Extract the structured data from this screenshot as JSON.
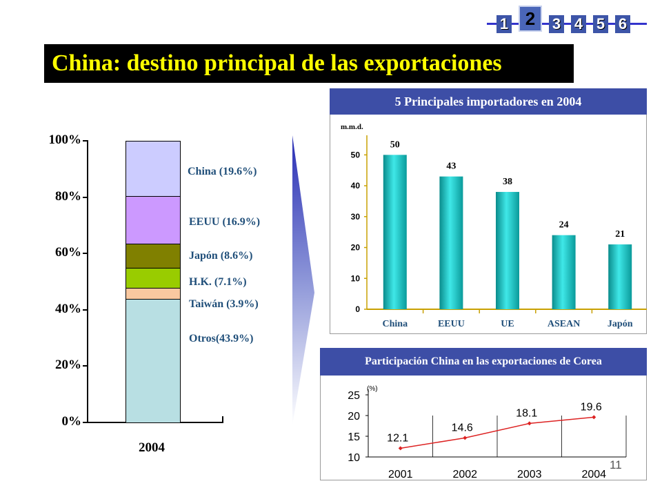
{
  "nav": {
    "pages": [
      "1",
      "2",
      "3",
      "4",
      "5",
      "6"
    ],
    "active": "2"
  },
  "title": "China: destino principal de las exportaciones",
  "page_number": "11",
  "colors": {
    "title_bg": "#000000",
    "title_text": "#ffff00",
    "panel_header": "#3d4ea6",
    "bar": "#19c8c8",
    "line": "#dd2222"
  },
  "chart_data": [
    {
      "type": "bar",
      "stacked": true,
      "categories": [
        "2004"
      ],
      "y_ticks": [
        "0%",
        "20%",
        "40%",
        "60%",
        "80%",
        "100%"
      ],
      "ylim": [
        0,
        100
      ],
      "series": [
        {
          "name": "Otros(43.9%)",
          "value": 43.9,
          "color": "#b8dfe3"
        },
        {
          "name": "Taiwán (3.9%)",
          "value": 3.9,
          "color": "#f9c8a0"
        },
        {
          "name": "H.K. (7.1%)",
          "value": 7.1,
          "color": "#99cc00"
        },
        {
          "name": "Japón (8.6%)",
          "value": 8.6,
          "color": "#808000"
        },
        {
          "name": "EEUU (16.9%)",
          "value": 16.9,
          "color": "#cc99ff"
        },
        {
          "name": "China (19.6%)",
          "value": 19.6,
          "color": "#ccccff"
        }
      ]
    },
    {
      "type": "bar",
      "title": "5 Principales importadores en 2004",
      "unit": "m.m.d.",
      "categories": [
        "China",
        "EEUU",
        "UE",
        "ASEAN",
        "Japón"
      ],
      "values": [
        50,
        43,
        38,
        24,
        21
      ],
      "labels": [
        "50",
        "43",
        "38",
        "24",
        "21"
      ],
      "y_ticks": [
        "0",
        "10",
        "20",
        "30",
        "40",
        "50"
      ],
      "ylim": [
        0,
        55
      ]
    },
    {
      "type": "line",
      "title": "Participación China en las exportaciones de Corea",
      "unit": "(%)",
      "x": [
        "2001",
        "2002",
        "2003",
        "2004"
      ],
      "values": [
        12.1,
        14.6,
        18.1,
        19.6
      ],
      "labels": [
        "12.1",
        "14.6",
        "18.1",
        "19.6"
      ],
      "y_ticks": [
        "10",
        "15",
        "20",
        "25"
      ],
      "ylim": [
        10,
        25
      ]
    }
  ]
}
